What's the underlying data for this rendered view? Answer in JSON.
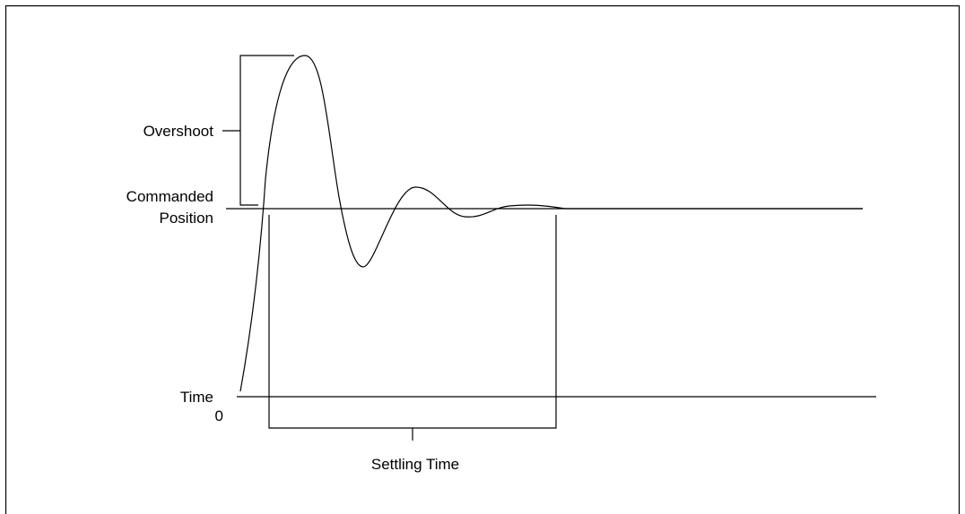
{
  "labels": {
    "overshoot": "Overshoot",
    "commanded_line1": "Commanded",
    "commanded_line2": "Position",
    "time": "Time",
    "origin": "0",
    "settling_time": "Settling Time"
  },
  "colors": {
    "line": "#000000",
    "background": "#ffffff"
  }
}
